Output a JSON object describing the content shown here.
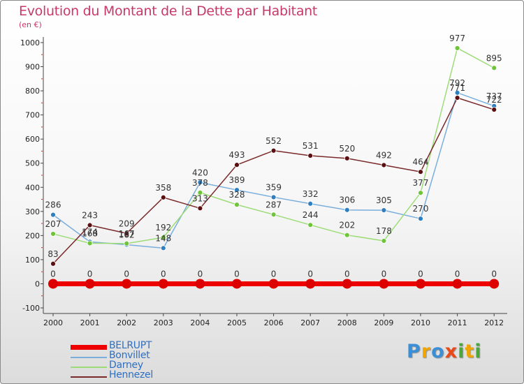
{
  "header": {
    "title": "Evolution du Montant de la Dette par Habitant",
    "unit": "(en €)"
  },
  "brand": {
    "letters": [
      {
        "ch": "P",
        "color": "#3a8fd6"
      },
      {
        "ch": "r",
        "color": "#f0a500"
      },
      {
        "ch": "o",
        "color": "#3a8fd6"
      },
      {
        "ch": "x",
        "color": "#e84a1a"
      },
      {
        "ch": "i",
        "color": "#4aa83a"
      },
      {
        "ch": "t",
        "color": "#f0a500"
      },
      {
        "ch": "i",
        "color": "#4aa83a"
      }
    ]
  },
  "chart_data": {
    "type": "line",
    "title": "Evolution du Montant de la Dette par Habitant",
    "subtitle": "(en €)",
    "xlabel": "",
    "ylabel": "",
    "x": [
      "2000",
      "2001",
      "2002",
      "2003",
      "2004",
      "2005",
      "2006",
      "2007",
      "2008",
      "2009",
      "2010",
      "2011",
      "2012"
    ],
    "ylim": [
      -100,
      1000
    ],
    "yticks": [
      -100,
      0,
      100,
      200,
      300,
      400,
      500,
      600,
      700,
      800,
      900,
      1000
    ],
    "grid": false,
    "legend_position": "bottom-left",
    "series": [
      {
        "name": "BELRUPT",
        "color": "#ee0000",
        "point_color": "#dd0000",
        "stroke_width": 7,
        "point_radius": 7,
        "values": [
          0,
          0,
          0,
          0,
          0,
          0,
          0,
          0,
          0,
          0,
          0,
          0,
          0
        ]
      },
      {
        "name": "Bonvillet",
        "color": "#7aaedc",
        "point_color": "#2f7fc0",
        "stroke_width": 1.5,
        "point_radius": 3.5,
        "values": [
          286,
          174,
          162,
          148,
          420,
          389,
          359,
          332,
          306,
          305,
          270,
          792,
          737
        ]
      },
      {
        "name": "Darney",
        "color": "#9ddc77",
        "point_color": "#70c43a",
        "stroke_width": 1.5,
        "point_radius": 3.5,
        "values": [
          207,
          168,
          167,
          192,
          378,
          328,
          287,
          244,
          202,
          178,
          377,
          977,
          895
        ]
      },
      {
        "name": "Hennezel",
        "color": "#7a2a2a",
        "point_color": "#5a1010",
        "stroke_width": 1.5,
        "point_radius": 3.5,
        "values": [
          83,
          243,
          209,
          358,
          313,
          493,
          552,
          531,
          520,
          492,
          464,
          771,
          722
        ]
      }
    ]
  }
}
